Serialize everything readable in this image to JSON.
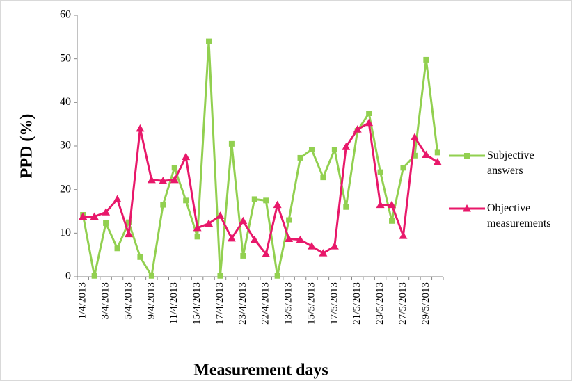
{
  "chart_data": {
    "type": "line",
    "y_label": "PPD (%)",
    "x_label": "Measurement days",
    "categories": [
      "1/4/2013",
      null,
      "3/4/2013",
      null,
      "5/4/2013",
      null,
      "9/4/2013",
      null,
      "11/4/2013",
      null,
      "15/4/2013",
      null,
      "17/4/2013",
      null,
      "23/4/2013",
      null,
      "22/4/2013",
      null,
      "13/5/2013",
      null,
      "15/5/2013",
      null,
      "17/5/2013",
      null,
      "21/5/2013",
      null,
      "23/5/2013",
      null,
      "27/5/2013",
      null,
      "29/5/2013",
      null
    ],
    "series": [
      {
        "name": "Subjective answers",
        "color": "#92d050",
        "marker": "square",
        "values": [
          14.2,
          0.2,
          12.3,
          6.5,
          12.5,
          4.5,
          0.2,
          16.5,
          25,
          17.5,
          9.2,
          54,
          0.2,
          30.5,
          4.8,
          17.8,
          17.5,
          0.2,
          13,
          27.3,
          29.2,
          22.8,
          29.2,
          16,
          33.5,
          37.5,
          24,
          12.8,
          25,
          27.8,
          49.8,
          28.5
        ]
      },
      {
        "name": "Objective measurements",
        "color": "#e8186a",
        "marker": "triangle",
        "values": [
          13.8,
          13.8,
          14.8,
          17.8,
          9.8,
          34,
          22.2,
          22,
          22.2,
          27.5,
          11.2,
          12.2,
          14,
          8.8,
          12.8,
          8.5,
          5.2,
          16.5,
          8.7,
          8.5,
          7,
          5.4,
          7,
          29.8,
          33.8,
          35.3,
          16.5,
          16.5,
          9.4,
          32,
          28,
          26.3
        ]
      }
    ],
    "ylim": [
      0,
      60
    ],
    "yticks": [
      0,
      10,
      20,
      30,
      40,
      50,
      60
    ],
    "grid": false,
    "legend": "right"
  }
}
